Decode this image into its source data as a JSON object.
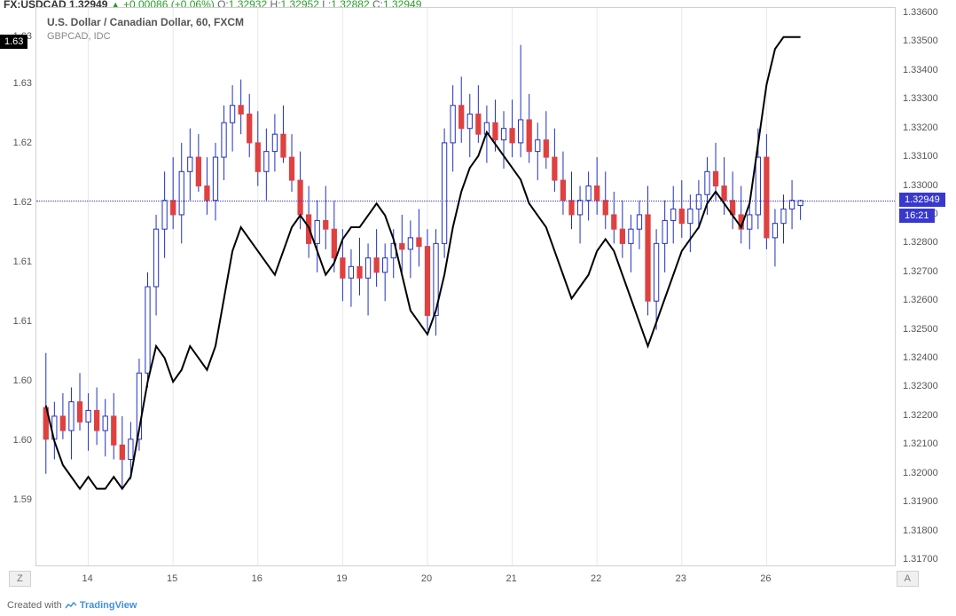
{
  "symbol": "FX:USDCAD",
  "last_price": "1.32949",
  "change": "+0.00086",
  "change_pct": "(+0.06%)",
  "ohlc": {
    "O": "1.32932",
    "H": "1.32952",
    "L": "1.32882",
    "C": "1.32949"
  },
  "title_line1": "U.S. Dollar / Canadian Dollar, 60, FXCM",
  "title_line2": "GBPCAD, IDC",
  "zone_left": "Z",
  "zone_right": "A",
  "footer_text": "Created with ",
  "footer_brand": "TradingView",
  "chart": {
    "type": "candlestick_overlay_line",
    "colors": {
      "up_body": "#ffffff",
      "down_body": "#e04040",
      "up_wick": "#2030c0",
      "down_wick": "#2030c0",
      "up_border": "#2030c0",
      "line_color": "#000000",
      "grid": "#e8e8e8",
      "axis_text": "#555555",
      "last_line": "#3838cc",
      "badge_bg": "#3838cc",
      "badge_left_bg": "#000000"
    },
    "right_axis": {
      "min": 1.317,
      "max": 1.336,
      "step": 0.001,
      "ticks": [
        "1.33600",
        "1.33500",
        "1.33400",
        "1.33300",
        "1.33200",
        "1.33100",
        "1.33000",
        "1.32900",
        "1.32800",
        "1.32700",
        "1.32600",
        "1.32500",
        "1.32400",
        "1.32300",
        "1.32200",
        "1.32100",
        "1.32000",
        "1.31900",
        "1.31800",
        "1.31700"
      ],
      "last_price_label": "1.32949",
      "time_label": "16:21"
    },
    "left_axis": {
      "min": 1.59,
      "max": 1.636,
      "ticks": [
        {
          "v": 1.634,
          "label": "1.63"
        },
        {
          "v": 1.63,
          "label": "1.63"
        },
        {
          "v": 1.625,
          "label": "1.62"
        },
        {
          "v": 1.62,
          "label": "1.62"
        },
        {
          "v": 1.615,
          "label": "1.61"
        },
        {
          "v": 1.61,
          "label": "1.61"
        },
        {
          "v": 1.605,
          "label": "1.60"
        },
        {
          "v": 1.6,
          "label": "1.60"
        },
        {
          "v": 1.595,
          "label": "1.59"
        }
      ],
      "badge_value": 1.6335,
      "badge_label": "1.63"
    },
    "x_axis": {
      "labels": [
        "14",
        "15",
        "16",
        "19",
        "20",
        "21",
        "22",
        "23",
        "26"
      ]
    },
    "candles": [
      {
        "o": 1.3223,
        "h": 1.3242,
        "l": 1.32,
        "c": 1.3212,
        "d": 0
      },
      {
        "o": 1.3212,
        "h": 1.3225,
        "l": 1.3205,
        "c": 1.322,
        "d": 1
      },
      {
        "o": 1.322,
        "h": 1.3228,
        "l": 1.3212,
        "c": 1.3215,
        "d": 0
      },
      {
        "o": 1.3215,
        "h": 1.323,
        "l": 1.3205,
        "c": 1.3225,
        "d": 1
      },
      {
        "o": 1.3225,
        "h": 1.3235,
        "l": 1.3215,
        "c": 1.3218,
        "d": 0
      },
      {
        "o": 1.3218,
        "h": 1.3228,
        "l": 1.3208,
        "c": 1.3222,
        "d": 1
      },
      {
        "o": 1.3222,
        "h": 1.323,
        "l": 1.321,
        "c": 1.3215,
        "d": 0
      },
      {
        "o": 1.3215,
        "h": 1.3226,
        "l": 1.3206,
        "c": 1.322,
        "d": 1
      },
      {
        "o": 1.322,
        "h": 1.3228,
        "l": 1.3205,
        "c": 1.321,
        "d": 0
      },
      {
        "o": 1.321,
        "h": 1.322,
        "l": 1.3195,
        "c": 1.3205,
        "d": 0
      },
      {
        "o": 1.3205,
        "h": 1.3218,
        "l": 1.3198,
        "c": 1.3212,
        "d": 1
      },
      {
        "o": 1.3212,
        "h": 1.324,
        "l": 1.3208,
        "c": 1.3235,
        "d": 1
      },
      {
        "o": 1.3235,
        "h": 1.327,
        "l": 1.323,
        "c": 1.3265,
        "d": 1
      },
      {
        "o": 1.3265,
        "h": 1.329,
        "l": 1.3255,
        "c": 1.3285,
        "d": 1
      },
      {
        "o": 1.3285,
        "h": 1.3305,
        "l": 1.3275,
        "c": 1.3295,
        "d": 1
      },
      {
        "o": 1.3295,
        "h": 1.331,
        "l": 1.3285,
        "c": 1.329,
        "d": 0
      },
      {
        "o": 1.329,
        "h": 1.3315,
        "l": 1.328,
        "c": 1.3305,
        "d": 1
      },
      {
        "o": 1.3305,
        "h": 1.332,
        "l": 1.3295,
        "c": 1.331,
        "d": 1
      },
      {
        "o": 1.331,
        "h": 1.3318,
        "l": 1.3298,
        "c": 1.33,
        "d": 0
      },
      {
        "o": 1.33,
        "h": 1.331,
        "l": 1.329,
        "c": 1.3295,
        "d": 0
      },
      {
        "o": 1.3295,
        "h": 1.3315,
        "l": 1.3288,
        "c": 1.331,
        "d": 1
      },
      {
        "o": 1.331,
        "h": 1.3328,
        "l": 1.3302,
        "c": 1.3322,
        "d": 1
      },
      {
        "o": 1.3322,
        "h": 1.3335,
        "l": 1.3312,
        "c": 1.3328,
        "d": 1
      },
      {
        "o": 1.3328,
        "h": 1.3337,
        "l": 1.3318,
        "c": 1.3325,
        "d": 0
      },
      {
        "o": 1.3325,
        "h": 1.3332,
        "l": 1.331,
        "c": 1.3315,
        "d": 0
      },
      {
        "o": 1.3315,
        "h": 1.3326,
        "l": 1.33,
        "c": 1.3305,
        "d": 0
      },
      {
        "o": 1.3305,
        "h": 1.332,
        "l": 1.3295,
        "c": 1.3312,
        "d": 1
      },
      {
        "o": 1.3312,
        "h": 1.3325,
        "l": 1.3305,
        "c": 1.3318,
        "d": 1
      },
      {
        "o": 1.3318,
        "h": 1.3328,
        "l": 1.3308,
        "c": 1.331,
        "d": 0
      },
      {
        "o": 1.331,
        "h": 1.3318,
        "l": 1.3298,
        "c": 1.3302,
        "d": 0
      },
      {
        "o": 1.3302,
        "h": 1.3312,
        "l": 1.3285,
        "c": 1.329,
        "d": 0
      },
      {
        "o": 1.329,
        "h": 1.33,
        "l": 1.3275,
        "c": 1.328,
        "d": 0
      },
      {
        "o": 1.328,
        "h": 1.3295,
        "l": 1.327,
        "c": 1.3288,
        "d": 1
      },
      {
        "o": 1.3288,
        "h": 1.33,
        "l": 1.3278,
        "c": 1.3285,
        "d": 0
      },
      {
        "o": 1.3285,
        "h": 1.3295,
        "l": 1.327,
        "c": 1.3275,
        "d": 0
      },
      {
        "o": 1.3275,
        "h": 1.3285,
        "l": 1.326,
        "c": 1.3268,
        "d": 0
      },
      {
        "o": 1.3268,
        "h": 1.3278,
        "l": 1.3258,
        "c": 1.3272,
        "d": 1
      },
      {
        "o": 1.3272,
        "h": 1.3282,
        "l": 1.3262,
        "c": 1.3268,
        "d": 0
      },
      {
        "o": 1.3268,
        "h": 1.328,
        "l": 1.3255,
        "c": 1.3275,
        "d": 1
      },
      {
        "o": 1.3275,
        "h": 1.3285,
        "l": 1.3265,
        "c": 1.327,
        "d": 0
      },
      {
        "o": 1.327,
        "h": 1.328,
        "l": 1.326,
        "c": 1.3275,
        "d": 1
      },
      {
        "o": 1.3275,
        "h": 1.3285,
        "l": 1.3268,
        "c": 1.328,
        "d": 1
      },
      {
        "o": 1.328,
        "h": 1.329,
        "l": 1.327,
        "c": 1.3278,
        "d": 0
      },
      {
        "o": 1.3278,
        "h": 1.3288,
        "l": 1.3268,
        "c": 1.3282,
        "d": 1
      },
      {
        "o": 1.3282,
        "h": 1.3292,
        "l": 1.3272,
        "c": 1.3279,
        "d": 0
      },
      {
        "o": 1.3279,
        "h": 1.3285,
        "l": 1.325,
        "c": 1.3255,
        "d": 0
      },
      {
        "o": 1.3255,
        "h": 1.3285,
        "l": 1.3248,
        "c": 1.328,
        "d": 1
      },
      {
        "o": 1.328,
        "h": 1.332,
        "l": 1.3275,
        "c": 1.3315,
        "d": 1
      },
      {
        "o": 1.3315,
        "h": 1.3335,
        "l": 1.3305,
        "c": 1.3328,
        "d": 1
      },
      {
        "o": 1.3328,
        "h": 1.3338,
        "l": 1.3315,
        "c": 1.332,
        "d": 0
      },
      {
        "o": 1.332,
        "h": 1.3332,
        "l": 1.331,
        "c": 1.3325,
        "d": 1
      },
      {
        "o": 1.3325,
        "h": 1.3335,
        "l": 1.3315,
        "c": 1.3318,
        "d": 0
      },
      {
        "o": 1.3318,
        "h": 1.3328,
        "l": 1.3308,
        "c": 1.3322,
        "d": 1
      },
      {
        "o": 1.3322,
        "h": 1.333,
        "l": 1.3312,
        "c": 1.3316,
        "d": 0
      },
      {
        "o": 1.3316,
        "h": 1.3326,
        "l": 1.3306,
        "c": 1.332,
        "d": 1
      },
      {
        "o": 1.332,
        "h": 1.333,
        "l": 1.331,
        "c": 1.3315,
        "d": 0
      },
      {
        "o": 1.3315,
        "h": 1.3349,
        "l": 1.331,
        "c": 1.3323,
        "d": 1
      },
      {
        "o": 1.3323,
        "h": 1.3332,
        "l": 1.3308,
        "c": 1.3312,
        "d": 0
      },
      {
        "o": 1.3312,
        "h": 1.3322,
        "l": 1.3302,
        "c": 1.3316,
        "d": 1
      },
      {
        "o": 1.3316,
        "h": 1.3326,
        "l": 1.3306,
        "c": 1.331,
        "d": 0
      },
      {
        "o": 1.331,
        "h": 1.332,
        "l": 1.3298,
        "c": 1.3302,
        "d": 0
      },
      {
        "o": 1.3302,
        "h": 1.3312,
        "l": 1.329,
        "c": 1.3295,
        "d": 0
      },
      {
        "o": 1.3295,
        "h": 1.3305,
        "l": 1.3285,
        "c": 1.329,
        "d": 0
      },
      {
        "o": 1.329,
        "h": 1.33,
        "l": 1.328,
        "c": 1.3295,
        "d": 1
      },
      {
        "o": 1.3295,
        "h": 1.3305,
        "l": 1.3288,
        "c": 1.33,
        "d": 1
      },
      {
        "o": 1.33,
        "h": 1.331,
        "l": 1.329,
        "c": 1.3295,
        "d": 0
      },
      {
        "o": 1.3295,
        "h": 1.3305,
        "l": 1.3285,
        "c": 1.329,
        "d": 0
      },
      {
        "o": 1.329,
        "h": 1.3298,
        "l": 1.328,
        "c": 1.3285,
        "d": 0
      },
      {
        "o": 1.3285,
        "h": 1.3295,
        "l": 1.3275,
        "c": 1.328,
        "d": 0
      },
      {
        "o": 1.328,
        "h": 1.329,
        "l": 1.327,
        "c": 1.3285,
        "d": 1
      },
      {
        "o": 1.3285,
        "h": 1.3295,
        "l": 1.3278,
        "c": 1.329,
        "d": 1
      },
      {
        "o": 1.329,
        "h": 1.33,
        "l": 1.3255,
        "c": 1.326,
        "d": 0
      },
      {
        "o": 1.326,
        "h": 1.3285,
        "l": 1.325,
        "c": 1.328,
        "d": 1
      },
      {
        "o": 1.328,
        "h": 1.3295,
        "l": 1.327,
        "c": 1.3288,
        "d": 1
      },
      {
        "o": 1.3288,
        "h": 1.33,
        "l": 1.328,
        "c": 1.3292,
        "d": 1
      },
      {
        "o": 1.3292,
        "h": 1.3302,
        "l": 1.3282,
        "c": 1.3287,
        "d": 0
      },
      {
        "o": 1.3287,
        "h": 1.3297,
        "l": 1.3277,
        "c": 1.3292,
        "d": 1
      },
      {
        "o": 1.3292,
        "h": 1.3302,
        "l": 1.3285,
        "c": 1.3297,
        "d": 1
      },
      {
        "o": 1.3297,
        "h": 1.331,
        "l": 1.329,
        "c": 1.3305,
        "d": 1
      },
      {
        "o": 1.3305,
        "h": 1.3315,
        "l": 1.3295,
        "c": 1.33,
        "d": 0
      },
      {
        "o": 1.33,
        "h": 1.331,
        "l": 1.329,
        "c": 1.3295,
        "d": 0
      },
      {
        "o": 1.3295,
        "h": 1.3305,
        "l": 1.3285,
        "c": 1.329,
        "d": 0
      },
      {
        "o": 1.329,
        "h": 1.33,
        "l": 1.328,
        "c": 1.3285,
        "d": 0
      },
      {
        "o": 1.3285,
        "h": 1.3295,
        "l": 1.3278,
        "c": 1.329,
        "d": 1
      },
      {
        "o": 1.329,
        "h": 1.332,
        "l": 1.3285,
        "c": 1.331,
        "d": 1
      },
      {
        "o": 1.331,
        "h": 1.3318,
        "l": 1.3278,
        "c": 1.3282,
        "d": 0
      },
      {
        "o": 1.3282,
        "h": 1.3292,
        "l": 1.3272,
        "c": 1.3287,
        "d": 1
      },
      {
        "o": 1.3287,
        "h": 1.3297,
        "l": 1.328,
        "c": 1.3292,
        "d": 1
      },
      {
        "o": 1.3292,
        "h": 1.3302,
        "l": 1.3285,
        "c": 1.3295,
        "d": 1
      },
      {
        "o": 1.32932,
        "h": 1.32952,
        "l": 1.32882,
        "c": 1.32949,
        "d": 1
      }
    ],
    "overlay_line": [
      1.603,
      1.6,
      1.598,
      1.597,
      1.596,
      1.597,
      1.596,
      1.596,
      1.597,
      1.596,
      1.597,
      1.601,
      1.605,
      1.608,
      1.607,
      1.605,
      1.606,
      1.608,
      1.607,
      1.606,
      1.608,
      1.612,
      1.616,
      1.618,
      1.617,
      1.616,
      1.615,
      1.614,
      1.616,
      1.618,
      1.619,
      1.618,
      1.616,
      1.614,
      1.615,
      1.617,
      1.618,
      1.618,
      1.619,
      1.62,
      1.619,
      1.617,
      1.614,
      1.611,
      1.61,
      1.609,
      1.611,
      1.614,
      1.618,
      1.621,
      1.623,
      1.624,
      1.626,
      1.625,
      1.624,
      1.623,
      1.622,
      1.62,
      1.619,
      1.618,
      1.616,
      1.614,
      1.612,
      1.613,
      1.614,
      1.616,
      1.617,
      1.616,
      1.614,
      1.612,
      1.61,
      1.608,
      1.61,
      1.612,
      1.614,
      1.616,
      1.617,
      1.618,
      1.62,
      1.621,
      1.62,
      1.619,
      1.618,
      1.62,
      1.625,
      1.63,
      1.633,
      1.634,
      1.634,
      1.634
    ]
  }
}
